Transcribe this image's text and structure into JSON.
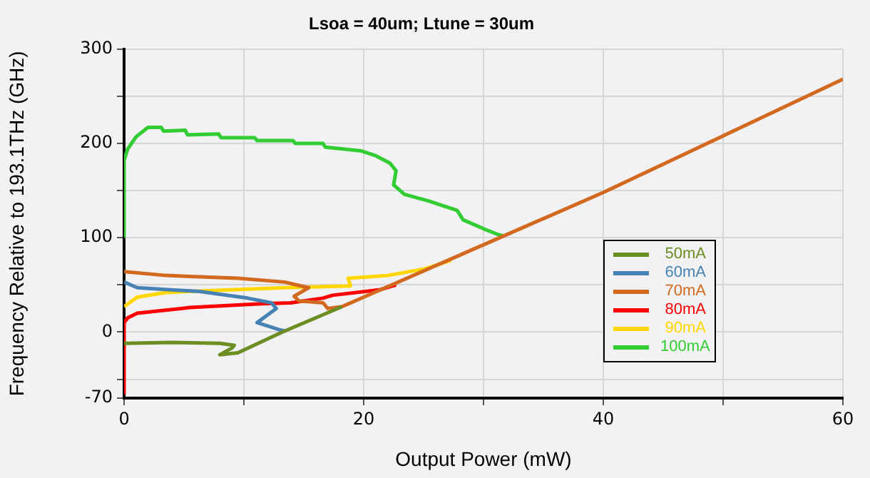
{
  "chart_data": {
    "type": "line",
    "title": "Lsoa = 40um; Ltune = 30um",
    "xlabel": "Output Power (mW)",
    "ylabel": "Frequency Relative to 193.1THz (GHz)",
    "xlim": [
      0,
      60
    ],
    "xticks": [
      0,
      {
        "value": 10,
        "label": null
      },
      20,
      {
        "value": 30,
        "label": null
      },
      40,
      {
        "value": 50,
        "label": null
      },
      60
    ],
    "ylim": [
      -70,
      300
    ],
    "yticks": [
      -70,
      {
        "value": -50,
        "label": null
      },
      0,
      {
        "value": 50,
        "label": null
      },
      100,
      {
        "value": 150,
        "label": null
      },
      200,
      {
        "value": 250,
        "label": null
      },
      300
    ],
    "grid": true,
    "legend": "bottom right",
    "marker": "none",
    "line_style": "solid",
    "series": [
      {
        "name": "50mA",
        "color": "#6b8e23",
        "x": [
          0,
          4,
          8,
          9.2,
          9,
          8,
          9.5,
          13.2,
          18.2
        ],
        "values": [
          -12,
          -11,
          -12,
          -14,
          -17,
          -24,
          -22,
          0,
          27
        ]
      },
      {
        "name": "60mA",
        "color": "#4682b4",
        "x": [
          0,
          1.1,
          6.3,
          10.3,
          12.3,
          12.7,
          11.1,
          13.1,
          13.5
        ],
        "values": [
          53,
          47,
          43,
          36,
          31,
          25,
          10,
          2,
          1
        ]
      },
      {
        "name": "70mA",
        "color": "#d2691e",
        "x": [
          0,
          3.5,
          9.5,
          13.4,
          15.4,
          14.2,
          14.6,
          16.6,
          17,
          18.2,
          20,
          31.7,
          40,
          50,
          60
        ],
        "values": [
          64,
          60,
          57,
          53,
          47,
          38,
          33,
          31,
          25,
          27,
          37,
          102,
          148,
          208,
          268
        ]
      },
      {
        "name": "80mA",
        "color": "#ff0000",
        "x": [
          0,
          0,
          0.3,
          1.1,
          5.5,
          11.5,
          13.9,
          16.6,
          17.4,
          21.4,
          22.7
        ],
        "values": [
          -66,
          10,
          15,
          20,
          26,
          30,
          31,
          36,
          39,
          45,
          50
        ]
      },
      {
        "name": "90mA",
        "color": "#ffd700",
        "x": [
          0,
          1.1,
          3.5,
          13.4,
          18.9,
          18.7,
          22,
          25.1,
          27.3
        ],
        "values": [
          27,
          37,
          42,
          47,
          49,
          57,
          60,
          67,
          76
        ]
      },
      {
        "name": "100mA",
        "color": "#32cd32",
        "x": [
          0,
          0,
          0.3,
          1,
          2,
          3.1,
          3.3,
          5.1,
          5.3,
          7.9,
          8.1,
          10.9,
          11.1,
          14.1,
          14.3,
          16.6,
          16.8,
          19.8,
          21,
          22.2,
          22.7,
          22.5,
          23.4,
          25.4,
          27.8,
          28.3,
          30.1,
          31.3,
          31.7
        ],
        "values": [
          100,
          182,
          194,
          207,
          217,
          217,
          213,
          214,
          209,
          210,
          206,
          206,
          203,
          203,
          200,
          200,
          196,
          192,
          187,
          179,
          171,
          156,
          146,
          139,
          129,
          119,
          109,
          103,
          102
        ]
      }
    ]
  }
}
